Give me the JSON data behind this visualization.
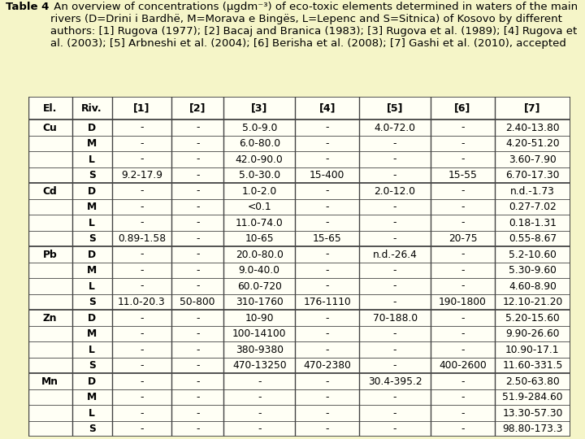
{
  "title_bold": "Table 4",
  "title_rest": " An overview of concentrations (μgdm⁻³) of eco-toxic elements determined in waters of the main rivers (D=Drini i Bardhë, M=Morava e Bingës, L=Lepenc and S=Sitnica) of Kosovo by different authors: [1] Rugova (1977); [2] Bacaj and Branica (1983); [3] Rugova et al. (1989); [4] Rugova et al. (2003); [5] Arbneshi et al. (2004); [6] Berisha et al. (2008); [7] Gashi et al. (2010), accepted",
  "headers": [
    "El.",
    "Riv.",
    "[1]",
    "[2]",
    "[3]",
    "[4]",
    "[5]",
    "[6]",
    "[7]"
  ],
  "background_color": "#f5f5c8",
  "table_bg": "#fffff5",
  "border_color": "#444444",
  "rows": [
    [
      "Cu",
      "D",
      "-",
      "-",
      "5.0-9.0",
      "-",
      "4.0-72.0",
      "-",
      "2.40-13.80"
    ],
    [
      "",
      "M",
      "-",
      "-",
      "6.0-80.0",
      "-",
      "-",
      "-",
      "4.20-51.20"
    ],
    [
      "",
      "L",
      "-",
      "-",
      "42.0-90.0",
      "-",
      "-",
      "-",
      "3.60-7.90"
    ],
    [
      "",
      "S",
      "9.2-17.9",
      "-",
      "5.0-30.0",
      "15-400",
      "-",
      "15-55",
      "6.70-17.30"
    ],
    [
      "Cd",
      "D",
      "-",
      "-",
      "1.0-2.0",
      "-",
      "2.0-12.0",
      "-",
      "n.d.-1.73"
    ],
    [
      "",
      "M",
      "-",
      "-",
      "<0.1",
      "-",
      "-",
      "-",
      "0.27-7.02"
    ],
    [
      "",
      "L",
      "-",
      "-",
      "11.0-74.0",
      "-",
      "-",
      "-",
      "0.18-1.31"
    ],
    [
      "",
      "S",
      "0.89-1.58",
      "-",
      "10-65",
      "15-65",
      "-",
      "20-75",
      "0.55-8.67"
    ],
    [
      "Pb",
      "D",
      "-",
      "-",
      "20.0-80.0",
      "-",
      "n.d.-26.4",
      "-",
      "5.2-10.60"
    ],
    [
      "",
      "M",
      "-",
      "-",
      "9.0-40.0",
      "-",
      "-",
      "-",
      "5.30-9.60"
    ],
    [
      "",
      "L",
      "-",
      "-",
      "60.0-720",
      "-",
      "-",
      "-",
      "4.60-8.90"
    ],
    [
      "",
      "S",
      "11.0-20.3",
      "50-800",
      "310-1760",
      "176-1110",
      "-",
      "190-1800",
      "12.10-21.20"
    ],
    [
      "Zn",
      "D",
      "-",
      "-",
      "10-90",
      "-",
      "70-188.0",
      "-",
      "5.20-15.60"
    ],
    [
      "",
      "M",
      "-",
      "-",
      "100-14100",
      "-",
      "-",
      "-",
      "9.90-26.60"
    ],
    [
      "",
      "L",
      "-",
      "-",
      "380-9380",
      "-",
      "-",
      "-",
      "10.90-17.1"
    ],
    [
      "",
      "S",
      "-",
      "-",
      "470-13250",
      "470-2380",
      "-",
      "400-2600",
      "11.60-331.5"
    ],
    [
      "Mn",
      "D",
      "-",
      "-",
      "-",
      "-",
      "30.4-395.2",
      "-",
      "2.50-63.80"
    ],
    [
      "",
      "M",
      "-",
      "-",
      "-",
      "-",
      "-",
      "-",
      "51.9-284.60"
    ],
    [
      "",
      "L",
      "-",
      "-",
      "-",
      "-",
      "-",
      "-",
      "13.30-57.30"
    ],
    [
      "",
      "S",
      "-",
      "-",
      "-",
      "-",
      "-",
      "-",
      "98.80-173.3"
    ]
  ],
  "element_rows": [
    0,
    4,
    8,
    12,
    16
  ],
  "group_sizes": [
    4,
    4,
    4,
    4,
    4
  ],
  "title_fontsize": 9.5,
  "header_fontsize": 9.0,
  "cell_fontsize": 8.8
}
